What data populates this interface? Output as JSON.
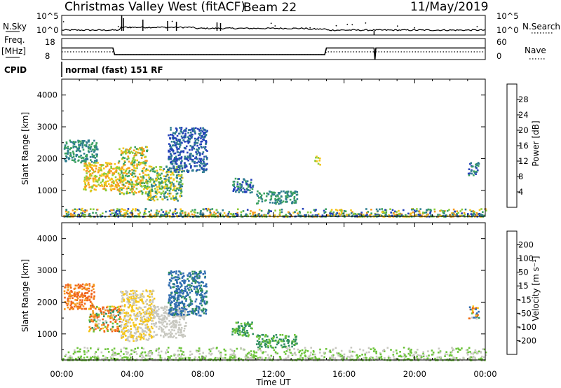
{
  "header": {
    "station": "Christmas Valley West (fitACF)",
    "beam": "Beam 22",
    "date": "11/May/2019"
  },
  "time_axis": {
    "xlabel": "Time UT",
    "ticks": [
      "00:00",
      "04:00",
      "08:00",
      "12:00",
      "16:00",
      "20:00",
      "00:00"
    ]
  },
  "params": {
    "nsky_label": "N.Sky",
    "nsky_ticks": [
      "10^5",
      "10^0"
    ],
    "nsearch_label": "N.Search",
    "freq_label": "Freq.",
    "freq_unit": "[MHz]",
    "freq_ticks": [
      "18",
      "8"
    ],
    "nave_label": "Nave",
    "nave_ticks": [
      "60",
      "0"
    ],
    "cpid_label": "CPID",
    "cpid_text": "normal (fast) 151 RF"
  },
  "power_panel": {
    "ylabel": "Slant Range [km]",
    "yticks": [
      "4000",
      "3000",
      "2000",
      "1000"
    ],
    "colorbar_label": "Power [dB]",
    "colorbar_ticks": [
      "28",
      "24",
      "20",
      "16",
      "12",
      "8",
      "4"
    ],
    "colors": [
      "#1c1cf0",
      "#2340b8",
      "#2e7d8f",
      "#3aa060",
      "#8ccc36",
      "#f5c518",
      "#f59a1e",
      "#f0641c",
      "#e82318"
    ]
  },
  "velocity_panel": {
    "ylabel": "Slant Range [km]",
    "yticks": [
      "4000",
      "3000",
      "2000",
      "1000"
    ],
    "colorbar_label": "Velocity [m s⁻¹]",
    "colorbar_ticks": [
      "200",
      "100",
      "50",
      "15",
      "-15",
      "-50",
      "-100",
      "-200"
    ],
    "colors": [
      "#1f3ca8",
      "#2f6cb0",
      "#2e8e5e",
      "#6cc43a",
      "#c8c8c0",
      "#f5c518",
      "#f59a1e",
      "#f0641c",
      "#e82318"
    ]
  },
  "chart_data": {
    "type": "heatmap",
    "title": "Christmas Valley West (fitACF)",
    "xlabel": "Time UT",
    "ylabel": "Slant Range [km]",
    "xlim": [
      0,
      24
    ],
    "ylim": [
      180,
      4500
    ],
    "freq_mhz": [
      {
        "t": 0.0,
        "v": 13.5
      },
      {
        "t": 2.9,
        "v": 13.5
      },
      {
        "t": 3.0,
        "v": 10.3
      },
      {
        "t": 14.9,
        "v": 10.3
      },
      {
        "t": 15.0,
        "v": 13.5
      },
      {
        "t": 17.7,
        "v": 13.5
      },
      {
        "t": 17.75,
        "v": 8
      },
      {
        "t": 17.8,
        "v": 13.5
      },
      {
        "t": 24.0,
        "v": 13.5
      }
    ],
    "nave": [
      {
        "t": 0.0,
        "v": 22
      },
      {
        "t": 2.9,
        "v": 22
      },
      {
        "t": 3.0,
        "v": 14
      },
      {
        "t": 14.9,
        "v": 14
      },
      {
        "t": 15.0,
        "v": 22
      },
      {
        "t": 24.0,
        "v": 22
      }
    ],
    "power_clusters": [
      {
        "t": [
          0.1,
          2.0
        ],
        "range": [
          1900,
          2600
        ],
        "db": [
          8,
          16
        ]
      },
      {
        "t": [
          1.2,
          3.2
        ],
        "range": [
          1000,
          1900
        ],
        "db": [
          16,
          28
        ]
      },
      {
        "t": [
          3.2,
          4.8
        ],
        "range": [
          900,
          2400
        ],
        "db": [
          12,
          28
        ]
      },
      {
        "t": [
          4.8,
          6.8
        ],
        "range": [
          700,
          1800
        ],
        "db": [
          8,
          24
        ]
      },
      {
        "t": [
          6.0,
          8.2
        ],
        "range": [
          1600,
          3000
        ],
        "db": [
          4,
          12
        ]
      },
      {
        "t": [
          9.6,
          10.8
        ],
        "range": [
          950,
          1400
        ],
        "db": [
          4,
          16
        ]
      },
      {
        "t": [
          11.0,
          13.3
        ],
        "range": [
          600,
          1000
        ],
        "db": [
          8,
          16
        ]
      },
      {
        "t": [
          14.3,
          14.6
        ],
        "range": [
          1800,
          2100
        ],
        "db": [
          16,
          24
        ]
      },
      {
        "t": [
          23.0,
          23.6
        ],
        "range": [
          1500,
          1900
        ],
        "db": [
          4,
          16
        ]
      },
      {
        "t": [
          0.0,
          24.0
        ],
        "range": [
          200,
          450
        ],
        "db": [
          4,
          28
        ]
      }
    ],
    "velocity_clusters": [
      {
        "t": [
          0.1,
          1.8
        ],
        "range": [
          1800,
          2600
        ],
        "v": [
          -200,
          -50
        ]
      },
      {
        "t": [
          1.5,
          3.3
        ],
        "range": [
          1100,
          1900
        ],
        "v": [
          -200,
          100
        ]
      },
      {
        "t": [
          3.3,
          5.2
        ],
        "range": [
          800,
          2400
        ],
        "v": [
          -50,
          15
        ]
      },
      {
        "t": [
          5.2,
          7.0
        ],
        "range": [
          900,
          1900
        ],
        "v": [
          -15,
          15
        ]
      },
      {
        "t": [
          6.0,
          8.2
        ],
        "range": [
          1600,
          3000
        ],
        "v": [
          50,
          200
        ]
      },
      {
        "t": [
          9.6,
          10.8
        ],
        "range": [
          950,
          1400
        ],
        "v": [
          15,
          100
        ]
      },
      {
        "t": [
          11.0,
          13.3
        ],
        "range": [
          600,
          1000
        ],
        "v": [
          15,
          100
        ]
      },
      {
        "t": [
          23.0,
          23.6
        ],
        "range": [
          1500,
          1900
        ],
        "v": [
          -200,
          200
        ]
      },
      {
        "t": [
          0.0,
          24.0
        ],
        "range": [
          200,
          600
        ],
        "v": [
          -15,
          50
        ]
      }
    ]
  }
}
